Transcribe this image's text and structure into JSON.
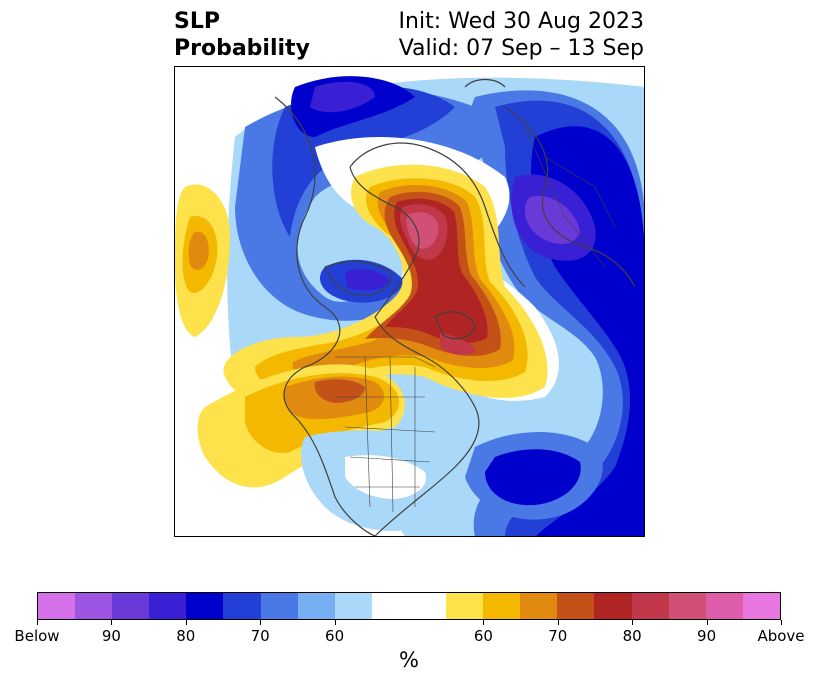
{
  "title": {
    "left_line1": "SLP",
    "left_line2": "Probability",
    "right_line1": "Init: Wed 30 Aug 2023",
    "right_line2": "Valid: 07 Sep – 13 Sep"
  },
  "colorbar": {
    "unit_label": "%",
    "colors": [
      "#d670e8",
      "#9b55e0",
      "#6a3ad8",
      "#3a20d4",
      "#0000cd",
      "#2340d6",
      "#4a78e4",
      "#76b0f2",
      "#aad8f8",
      "#ffffff",
      "#ffffff",
      "#fde24c",
      "#f4b800",
      "#e08a10",
      "#c45218",
      "#b02424",
      "#c0384a",
      "#d05076",
      "#dc5ea8",
      "#e876e0"
    ],
    "tick_labels": [
      "Below",
      "90",
      "80",
      "70",
      "60",
      "60",
      "70",
      "80",
      "90",
      "Above"
    ]
  }
}
